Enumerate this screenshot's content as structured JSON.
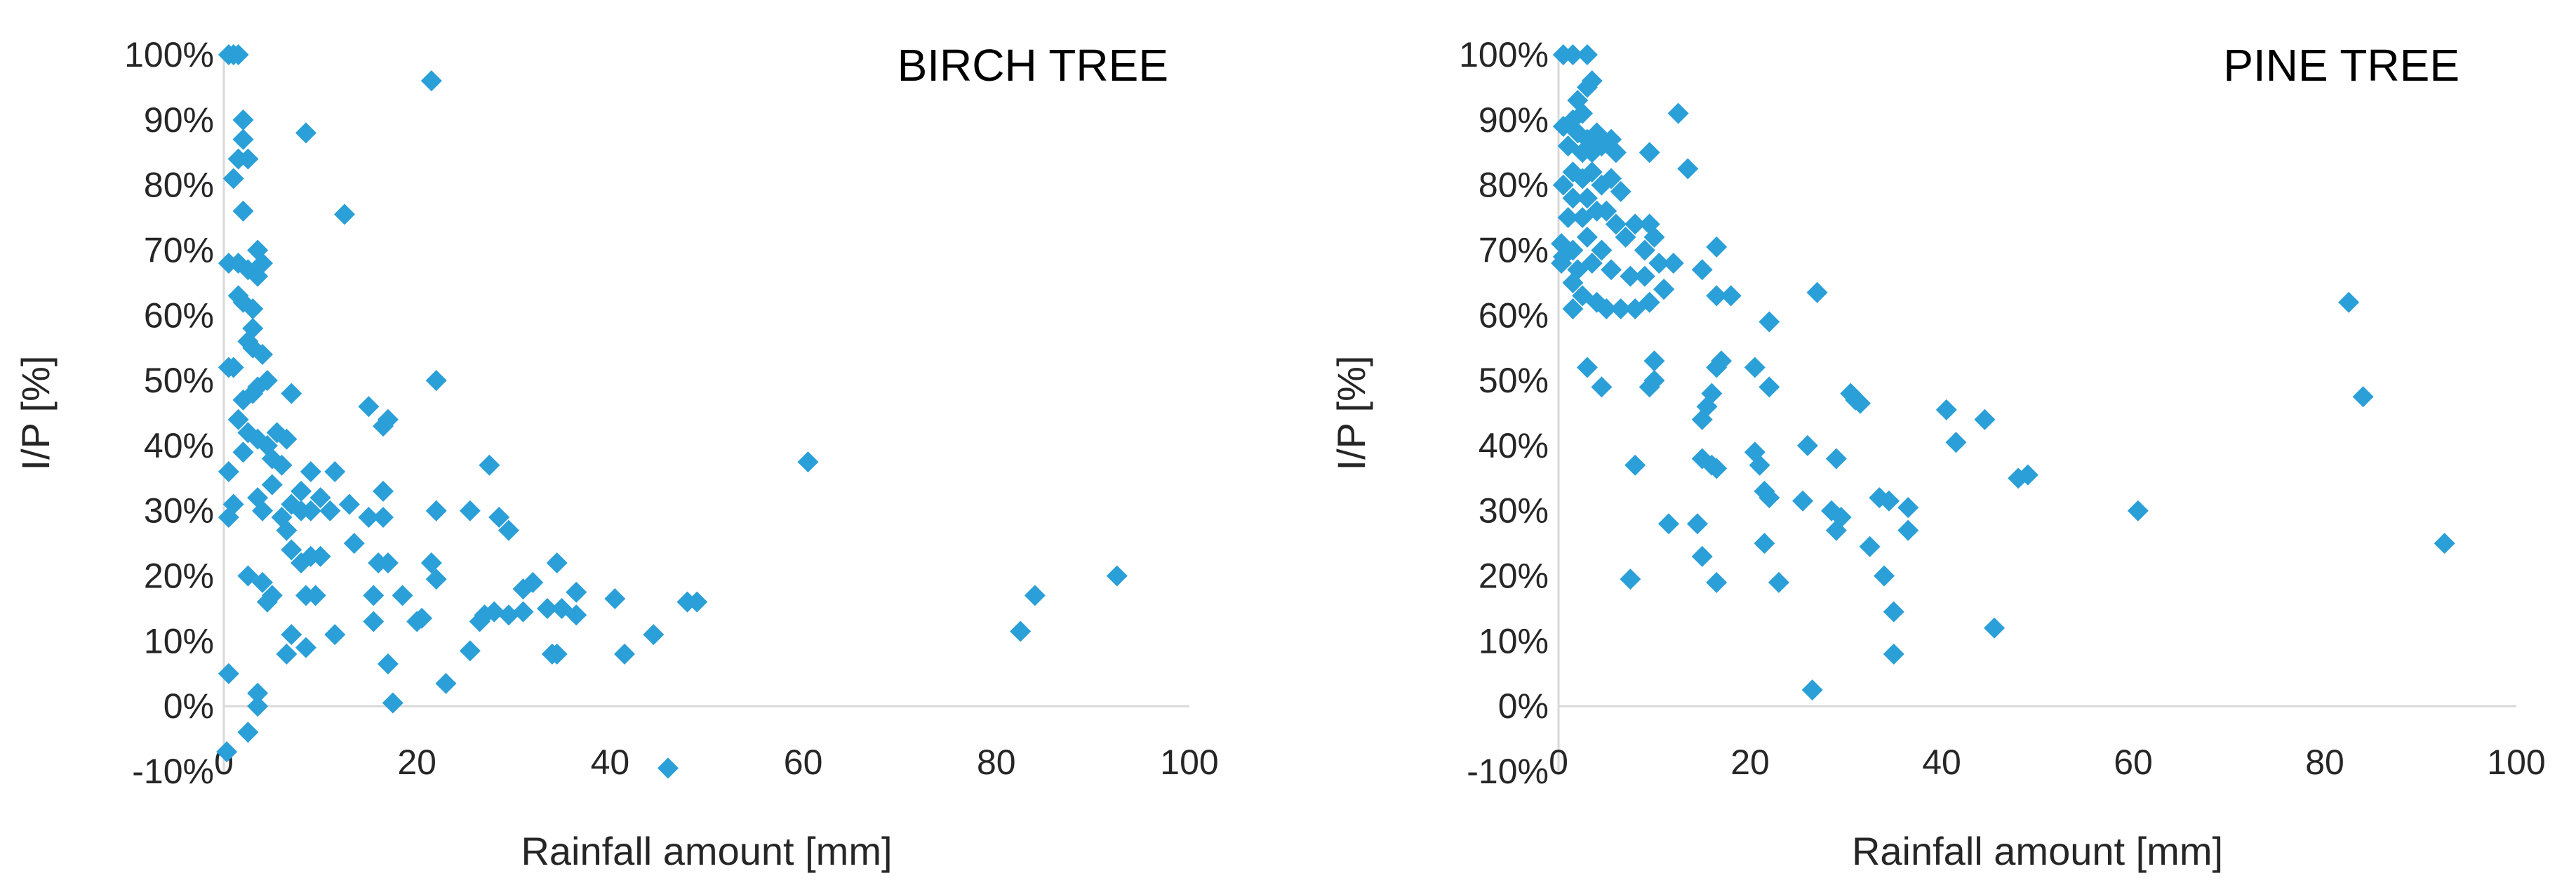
{
  "chart_data": [
    {
      "type": "scatter",
      "title": "BIRCH TREE",
      "xlabel": "Rainfall amount [mm]",
      "ylabel": "I/P [%]",
      "xlim": [
        0,
        100
      ],
      "ylim": [
        -10,
        100
      ],
      "x_ticks": [
        "0",
        "20",
        "40",
        "60",
        "80",
        "100"
      ],
      "y_ticks": [
        "-10%",
        "0%",
        "10%",
        "20%",
        "30%",
        "40%",
        "50%",
        "60%",
        "70%",
        "80%",
        "90%",
        "100%"
      ],
      "marker": "diamond",
      "color": "#2A9FD8",
      "grid": false,
      "points": [
        [
          0.5,
          100
        ],
        [
          1,
          100
        ],
        [
          1.5,
          100
        ],
        [
          2,
          90
        ],
        [
          2,
          87
        ],
        [
          1.5,
          84
        ],
        [
          2.5,
          84
        ],
        [
          1,
          81
        ],
        [
          2,
          76
        ],
        [
          8.5,
          88
        ],
        [
          21.5,
          96
        ],
        [
          12.5,
          75.5
        ],
        [
          0.5,
          68
        ],
        [
          1.5,
          68
        ],
        [
          2.5,
          67
        ],
        [
          3.5,
          70
        ],
        [
          4,
          68
        ],
        [
          3.5,
          66
        ],
        [
          1.5,
          63
        ],
        [
          2,
          62
        ],
        [
          3,
          61
        ],
        [
          3,
          58
        ],
        [
          2.5,
          56
        ],
        [
          3,
          55
        ],
        [
          4,
          54
        ],
        [
          0.5,
          52
        ],
        [
          1,
          52
        ],
        [
          2,
          47
        ],
        [
          3,
          48
        ],
        [
          3.5,
          49
        ],
        [
          4.5,
          50
        ],
        [
          7,
          48
        ],
        [
          22,
          50
        ],
        [
          15,
          46
        ],
        [
          1.5,
          44
        ],
        [
          2.5,
          42
        ],
        [
          3.5,
          41
        ],
        [
          4.5,
          40
        ],
        [
          5.5,
          42
        ],
        [
          6.5,
          41
        ],
        [
          16.5,
          43
        ],
        [
          17,
          44
        ],
        [
          0.5,
          36
        ],
        [
          2,
          39
        ],
        [
          5,
          38
        ],
        [
          6,
          37
        ],
        [
          9,
          36
        ],
        [
          11.5,
          36
        ],
        [
          8,
          33
        ],
        [
          3.5,
          32
        ],
        [
          5,
          34
        ],
        [
          7,
          31
        ],
        [
          10,
          32
        ],
        [
          16.5,
          33
        ],
        [
          27.5,
          37
        ],
        [
          60.5,
          37.5
        ],
        [
          1,
          31
        ],
        [
          0.5,
          29
        ],
        [
          4,
          30
        ],
        [
          6,
          29
        ],
        [
          8,
          30
        ],
        [
          9,
          30
        ],
        [
          11,
          30
        ],
        [
          13,
          31
        ],
        [
          15,
          29
        ],
        [
          16.5,
          29
        ],
        [
          22,
          30
        ],
        [
          25.5,
          30
        ],
        [
          28.5,
          29
        ],
        [
          29.5,
          27
        ],
        [
          6.5,
          27
        ],
        [
          7,
          24
        ],
        [
          8,
          22
        ],
        [
          9,
          23
        ],
        [
          10,
          23
        ],
        [
          13.5,
          25
        ],
        [
          16,
          22
        ],
        [
          17,
          22
        ],
        [
          21.5,
          22
        ],
        [
          2.5,
          20
        ],
        [
          4,
          19
        ],
        [
          5,
          17
        ],
        [
          4.5,
          16
        ],
        [
          8.5,
          17
        ],
        [
          9.5,
          17
        ],
        [
          15.5,
          17
        ],
        [
          18.5,
          17
        ],
        [
          22,
          19.5
        ],
        [
          31,
          18
        ],
        [
          32,
          19
        ],
        [
          34.5,
          22
        ],
        [
          36.5,
          17.5
        ],
        [
          40.5,
          16.5
        ],
        [
          48,
          16
        ],
        [
          49,
          16
        ],
        [
          92.5,
          20
        ],
        [
          84,
          17
        ],
        [
          82.5,
          11.5
        ],
        [
          7,
          11
        ],
        [
          11.5,
          11
        ],
        [
          15.5,
          13
        ],
        [
          20,
          13
        ],
        [
          20.5,
          13.5
        ],
        [
          26.5,
          13
        ],
        [
          27,
          14
        ],
        [
          28,
          14.5
        ],
        [
          29.5,
          14
        ],
        [
          31,
          14.5
        ],
        [
          33.5,
          15
        ],
        [
          35,
          15
        ],
        [
          36.5,
          14
        ],
        [
          44.5,
          11
        ],
        [
          6.5,
          8
        ],
        [
          8.5,
          9
        ],
        [
          25.5,
          8.5
        ],
        [
          34,
          8
        ],
        [
          34.5,
          8
        ],
        [
          41.5,
          8
        ],
        [
          17,
          6.5
        ],
        [
          23,
          3.5
        ],
        [
          0.5,
          5
        ],
        [
          3.5,
          2
        ],
        [
          3.5,
          0
        ],
        [
          17.5,
          0.5
        ],
        [
          2.5,
          -4
        ],
        [
          0.3,
          -7
        ],
        [
          46,
          -9.5
        ]
      ]
    },
    {
      "type": "scatter",
      "title": "PINE TREE",
      "xlabel": "Rainfall amount [mm]",
      "ylabel": "I/P [%]",
      "xlim": [
        0,
        100
      ],
      "ylim": [
        -10,
        100
      ],
      "x_ticks": [
        "0",
        "20",
        "40",
        "60",
        "80",
        "100"
      ],
      "y_ticks": [
        "-10%",
        "0%",
        "10%",
        "20%",
        "30%",
        "40%",
        "50%",
        "60%",
        "70%",
        "80%",
        "90%",
        "100%"
      ],
      "marker": "diamond",
      "color": "#2A9FD8",
      "grid": false,
      "points": [
        [
          0.5,
          100
        ],
        [
          1.5,
          100
        ],
        [
          3,
          100
        ],
        [
          3,
          95
        ],
        [
          3.5,
          96
        ],
        [
          2,
          93
        ],
        [
          2.5,
          91
        ],
        [
          1.5,
          90
        ],
        [
          0.5,
          89
        ],
        [
          2,
          88
        ],
        [
          3,
          87
        ],
        [
          4,
          88
        ],
        [
          5.5,
          87
        ],
        [
          1,
          86
        ],
        [
          2.5,
          85
        ],
        [
          3.5,
          85
        ],
        [
          4.5,
          86
        ],
        [
          6,
          85
        ],
        [
          9.5,
          85
        ],
        [
          12.5,
          91
        ],
        [
          13.5,
          82.5
        ],
        [
          1.5,
          82
        ],
        [
          2.5,
          81
        ],
        [
          3.5,
          82
        ],
        [
          4.5,
          80
        ],
        [
          5.5,
          81
        ],
        [
          0.5,
          80
        ],
        [
          1.5,
          78
        ],
        [
          3,
          78
        ],
        [
          4,
          76
        ],
        [
          6.5,
          79
        ],
        [
          2.5,
          75
        ],
        [
          5,
          76
        ],
        [
          6,
          74
        ],
        [
          8,
          74
        ],
        [
          9.5,
          74
        ],
        [
          10,
          72
        ],
        [
          1,
          75
        ],
        [
          0.3,
          71
        ],
        [
          0.5,
          69
        ],
        [
          1.5,
          70
        ],
        [
          3,
          72
        ],
        [
          4.5,
          70
        ],
        [
          7,
          72
        ],
        [
          9,
          70
        ],
        [
          10.5,
          68
        ],
        [
          12,
          68
        ],
        [
          16.5,
          70.5
        ],
        [
          2,
          67
        ],
        [
          3.5,
          68
        ],
        [
          5.5,
          67
        ],
        [
          7.5,
          66
        ],
        [
          9,
          66
        ],
        [
          11,
          64
        ],
        [
          15,
          67
        ],
        [
          0.3,
          68
        ],
        [
          1.5,
          65
        ],
        [
          2.5,
          63
        ],
        [
          4,
          62
        ],
        [
          5,
          61
        ],
        [
          6.5,
          61
        ],
        [
          8,
          61
        ],
        [
          9.5,
          62
        ],
        [
          16.5,
          63
        ],
        [
          18,
          63
        ],
        [
          27,
          63.5
        ],
        [
          82.5,
          62
        ],
        [
          1.5,
          61
        ],
        [
          22,
          59
        ],
        [
          11,
          64
        ],
        [
          3,
          52
        ],
        [
          4.5,
          49
        ],
        [
          10,
          53
        ],
        [
          10,
          50
        ],
        [
          16.5,
          52
        ],
        [
          17,
          53
        ],
        [
          20.5,
          52
        ],
        [
          22,
          49
        ],
        [
          9.5,
          49
        ],
        [
          16,
          48
        ],
        [
          15.5,
          46
        ],
        [
          15,
          44
        ],
        [
          30.5,
          48
        ],
        [
          31,
          47
        ],
        [
          31.5,
          46.5
        ],
        [
          40.5,
          45.5
        ],
        [
          44.5,
          44
        ],
        [
          84,
          47.5
        ],
        [
          26,
          40
        ],
        [
          20.5,
          39
        ],
        [
          41.5,
          40.5
        ],
        [
          15,
          38
        ],
        [
          16,
          37
        ],
        [
          16.5,
          36.5
        ],
        [
          21,
          37
        ],
        [
          8,
          37
        ],
        [
          29,
          38
        ],
        [
          48,
          35
        ],
        [
          49,
          35.5
        ],
        [
          21.5,
          33
        ],
        [
          22,
          32
        ],
        [
          25.5,
          31.5
        ],
        [
          33.5,
          32
        ],
        [
          34.5,
          31.5
        ],
        [
          36.5,
          30.5
        ],
        [
          60.5,
          30
        ],
        [
          92.5,
          25
        ],
        [
          11.5,
          28
        ],
        [
          14.5,
          28
        ],
        [
          28.5,
          30
        ],
        [
          29.5,
          29
        ],
        [
          29,
          27
        ],
        [
          32.5,
          24.5
        ],
        [
          36.5,
          27
        ],
        [
          15,
          23
        ],
        [
          21.5,
          25
        ],
        [
          7.5,
          19.5
        ],
        [
          16.5,
          19
        ],
        [
          23,
          19
        ],
        [
          34,
          20
        ],
        [
          35,
          14.5
        ],
        [
          45.5,
          12
        ],
        [
          35,
          8
        ],
        [
          26.5,
          2.5
        ]
      ]
    }
  ]
}
